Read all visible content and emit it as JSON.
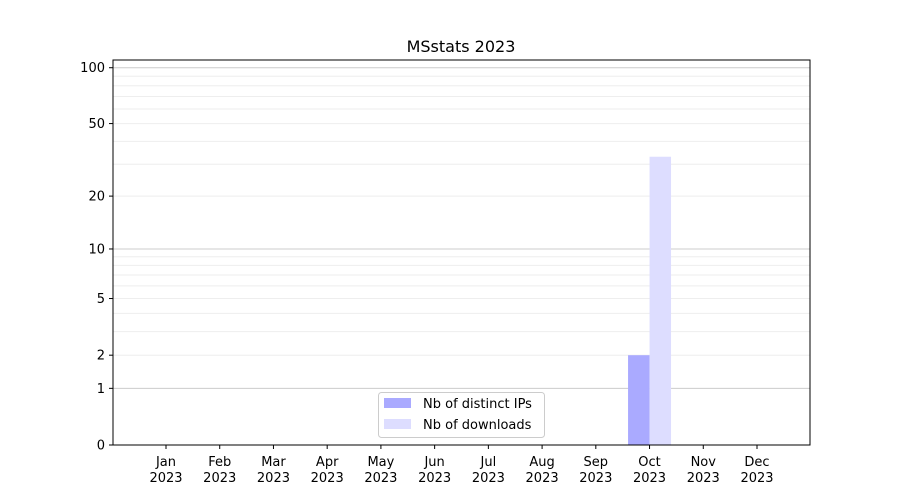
{
  "chart_data": {
    "type": "bar",
    "title": "MSstats 2023",
    "xlabel": "",
    "ylabel": "",
    "yscale": "log(1+y)",
    "ylim": [
      0,
      110
    ],
    "yticks": [
      0,
      1,
      2,
      5,
      10,
      20,
      50,
      100
    ],
    "grid": true,
    "legend_position": "lower-center",
    "categories": [
      "Jan\n2023",
      "Feb\n2023",
      "Mar\n2023",
      "Apr\n2023",
      "May\n2023",
      "Jun\n2023",
      "Jul\n2023",
      "Aug\n2023",
      "Sep\n2023",
      "Oct\n2023",
      "Nov\n2023",
      "Dec\n2023"
    ],
    "series": [
      {
        "name": "Nb of distinct IPs",
        "color": "#aaaaff",
        "values": [
          0,
          0,
          0,
          0,
          0,
          0,
          0,
          0,
          0,
          2,
          0,
          0
        ]
      },
      {
        "name": "Nb of downloads",
        "color": "#ddddff",
        "values": [
          0,
          0,
          0,
          0,
          0,
          0,
          0,
          0,
          0,
          33,
          0,
          0
        ]
      }
    ]
  }
}
